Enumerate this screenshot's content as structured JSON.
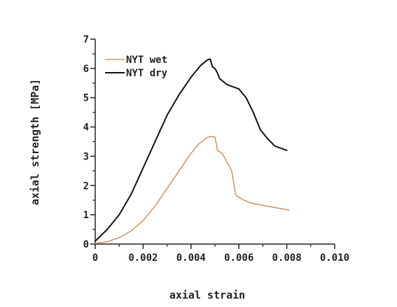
{
  "chart_data": {
    "type": "line",
    "title": "",
    "xlabel": "axial strain",
    "ylabel": "axial strength [MPa]",
    "xlim": [
      0,
      0.01
    ],
    "ylim": [
      0,
      7
    ],
    "x_ticks": [
      0,
      0.002,
      0.004,
      0.006,
      0.008,
      0.01
    ],
    "x_tick_labels": [
      "0",
      "0.002",
      "0.004",
      "0.006",
      "0.008",
      "0.010"
    ],
    "y_ticks": [
      0,
      1,
      2,
      3,
      4,
      5,
      6,
      7
    ],
    "y_tick_labels": [
      "0",
      "1",
      "2",
      "3",
      "4",
      "5",
      "6",
      "7"
    ],
    "grid": false,
    "legend_position": "top-left",
    "series": [
      {
        "name": "NYT wet",
        "color": "#c8844f",
        "x": [
          0,
          0.0005,
          0.001,
          0.0015,
          0.002,
          0.0025,
          0.003,
          0.0035,
          0.004,
          0.0043,
          0.0046,
          0.0048,
          0.005,
          0.00505,
          0.0051,
          0.0053,
          0.0055,
          0.0057,
          0.0058,
          0.00585,
          0.0059,
          0.0062,
          0.0065,
          0.007,
          0.0075,
          0.0081
        ],
        "y": [
          0.02,
          0.08,
          0.22,
          0.45,
          0.8,
          1.3,
          1.9,
          2.5,
          3.1,
          3.4,
          3.6,
          3.68,
          3.65,
          3.45,
          3.2,
          3.1,
          2.8,
          2.5,
          2.0,
          1.75,
          1.65,
          1.5,
          1.4,
          1.32,
          1.25,
          1.16
        ]
      },
      {
        "name": "NYT dry",
        "color": "#111111",
        "x": [
          0,
          0.0005,
          0.001,
          0.0015,
          0.002,
          0.0025,
          0.003,
          0.0035,
          0.004,
          0.0044,
          0.0047,
          0.0048,
          0.0049,
          0.005,
          0.0051,
          0.0052,
          0.0055,
          0.006,
          0.0063,
          0.0066,
          0.0069,
          0.0072,
          0.0075,
          0.008
        ],
        "y": [
          0.1,
          0.5,
          1.0,
          1.7,
          2.6,
          3.5,
          4.4,
          5.1,
          5.7,
          6.1,
          6.3,
          6.32,
          6.05,
          6.0,
          5.85,
          5.65,
          5.45,
          5.3,
          5.0,
          4.5,
          3.9,
          3.6,
          3.35,
          3.2
        ]
      }
    ]
  }
}
